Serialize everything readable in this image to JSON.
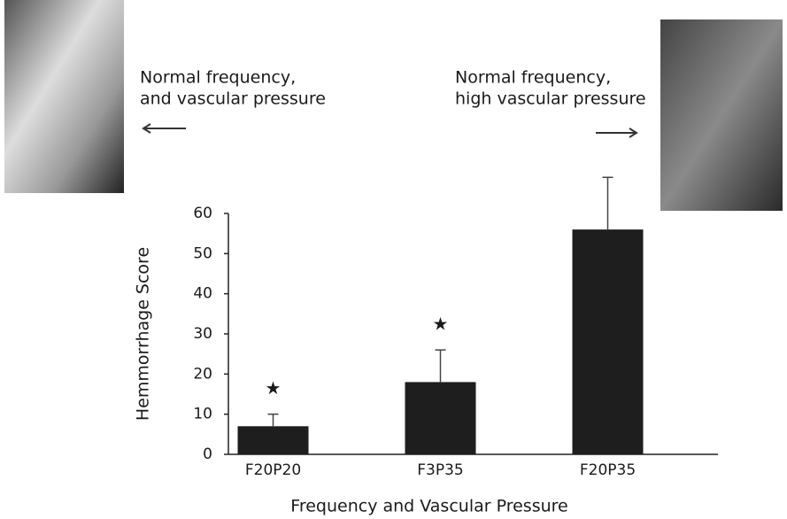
{
  "chart_data": {
    "type": "bar",
    "xlabel": "Frequency and Vascular Pressure",
    "ylabel": "Hemmorrhage Score",
    "categories": [
      "F20P20",
      "F3P35",
      "F20P35"
    ],
    "values": [
      7,
      18,
      56
    ],
    "errors": [
      3,
      8,
      13
    ],
    "markers": [
      "★",
      "★",
      null
    ],
    "color": "#1e1e1e",
    "ylim": [
      0,
      60
    ],
    "yticks": [
      0,
      10,
      20,
      30,
      40,
      50,
      60
    ],
    "annotations": [
      {
        "lines": [
          "Normal frequency,",
          "and vascular pressure"
        ]
      },
      {
        "lines": [
          "Normal frequency,",
          "high vascular pressure"
        ]
      }
    ]
  }
}
